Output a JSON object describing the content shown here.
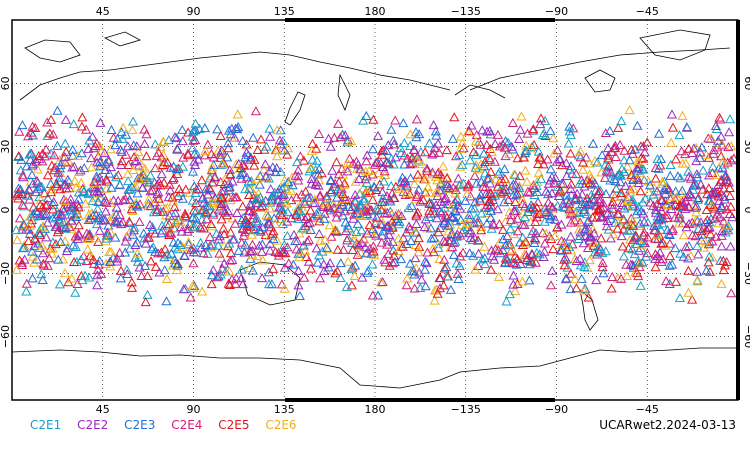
{
  "map": {
    "projection": "cylindrical equidistant, centered 180",
    "lon_range": [
      0,
      360
    ],
    "lat_range": [
      -90,
      90
    ],
    "grid": "dotted",
    "top_ticks": [
      "45",
      "90",
      "135",
      "180",
      "−135",
      "−90",
      "−45"
    ],
    "bottom_ticks": [
      "45",
      "90",
      "135",
      "180",
      "−135",
      "−90",
      "−45"
    ],
    "left_ticks": [
      "60",
      "30",
      "0",
      "−30",
      "−60"
    ],
    "right_ticks": [
      "60",
      "30",
      "0",
      "−30",
      "−60"
    ],
    "marker_shape": "open triangle",
    "marker_coverage_lat": [
      -45,
      48
    ]
  },
  "legend": [
    {
      "label": "C2E1",
      "color": "#17a0c8"
    },
    {
      "label": "C2E2",
      "color": "#9a28c0"
    },
    {
      "label": "C2E3",
      "color": "#1e6fd8"
    },
    {
      "label": "C2E4",
      "color": "#d0207a"
    },
    {
      "label": "C2E5",
      "color": "#e01818"
    },
    {
      "label": "C2E6",
      "color": "#f0b01c"
    }
  ],
  "stamp": "UCARwet2.2024-03-13"
}
